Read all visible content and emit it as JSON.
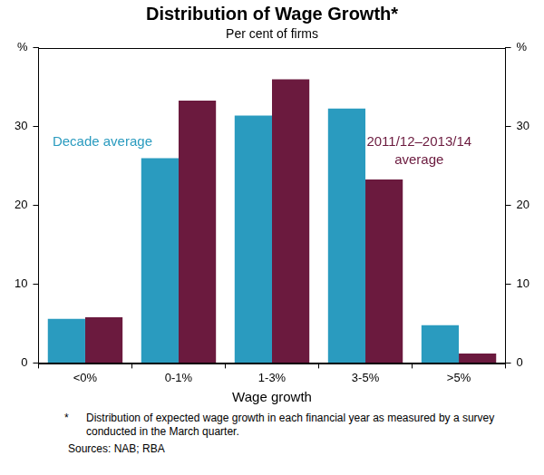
{
  "chart_data": {
    "type": "bar",
    "title": "Distribution of Wage Growth*",
    "subtitle": "Per cent of firms",
    "x_label": "Wage growth",
    "categories": [
      "<0%",
      "0-1%",
      "1-3%",
      "3-5%",
      ">5%"
    ],
    "series": [
      {
        "name": "Decade average",
        "color": "#2a9bbf",
        "values": [
          5.6,
          26.0,
          31.4,
          32.3,
          4.8
        ]
      },
      {
        "name": "2011/12–2013/14 average",
        "color": "#6b1a3e",
        "values": [
          5.8,
          33.3,
          36.0,
          23.3,
          1.2
        ]
      }
    ],
    "ylim": [
      0,
      40
    ],
    "yticks": [
      0,
      10,
      20,
      30,
      {
        "value": 40,
        "label": "%"
      }
    ],
    "y2lim": [
      0,
      40
    ],
    "y2ticks": [
      0,
      10,
      20,
      30,
      {
        "value": 40,
        "label": "%"
      }
    ],
    "grid": false,
    "footnote_mark": "*",
    "footnote": "Distribution of expected wage growth in each financial year as measured by a survey conducted in the March quarter.",
    "sources": "Sources: NAB; RBA"
  }
}
